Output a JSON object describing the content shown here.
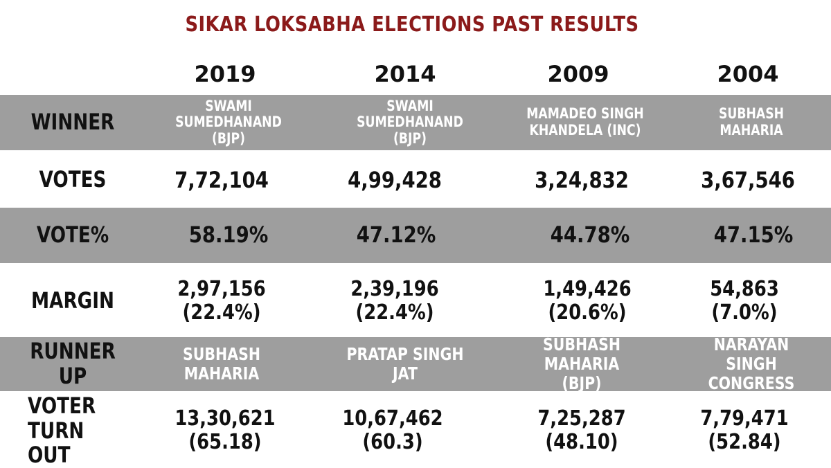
{
  "title": "SIKAR LOKSABHA ELECTIONS PAST RESULTS",
  "years": [
    "2019",
    "2014",
    "2009",
    "2004"
  ],
  "row_labels": {
    "winner": "WINNER",
    "votes": "VOTES",
    "vote_pct": "VOTE%",
    "margin": "MARGIN",
    "runner_up": "RUNNER UP",
    "turnout_1": "VOTER",
    "turnout_2": "TURN OUT"
  },
  "winner": [
    [
      "SWAMI SUMEDHANAND",
      "(BJP)"
    ],
    [
      "SWAMI SUMEDHANAND",
      "(BJP)"
    ],
    [
      "MAMADEO SINGH",
      "KHANDELA (INC)"
    ],
    [
      "SUBHASH",
      "MAHARIA"
    ]
  ],
  "votes": [
    "7,72,104",
    "4,99,428",
    "3,24,832",
    "3,67,546"
  ],
  "vote_pct": [
    "58.19%",
    "47.12%",
    "44.78%",
    "47.15%"
  ],
  "margin": [
    [
      "2,97,156",
      "(22.4%)"
    ],
    [
      "2,39,196",
      "(22.4%)"
    ],
    [
      "1,49,426",
      "(20.6%)"
    ],
    [
      "54,863",
      "(7.0%)"
    ]
  ],
  "runner_up": [
    [
      "SUBHASH",
      "MAHARIA"
    ],
    [
      "PRATAP SINGH",
      "JAT"
    ],
    [
      "SUBHASH MAHARIA",
      "(BJP)"
    ],
    [
      "NARAYAN SINGH",
      "CONGRESS"
    ]
  ],
  "turnout": [
    [
      "13,30,621",
      "(65.18)"
    ],
    [
      "10,67,462",
      "(60.3)"
    ],
    [
      "7,25,287",
      "(48.10)"
    ],
    [
      "7,79,471",
      "(52.84)"
    ]
  ],
  "colors": {
    "title": "#8b1a1a",
    "band": "#9e9e9e",
    "band_text": "#ffffff",
    "text": "#111111"
  }
}
